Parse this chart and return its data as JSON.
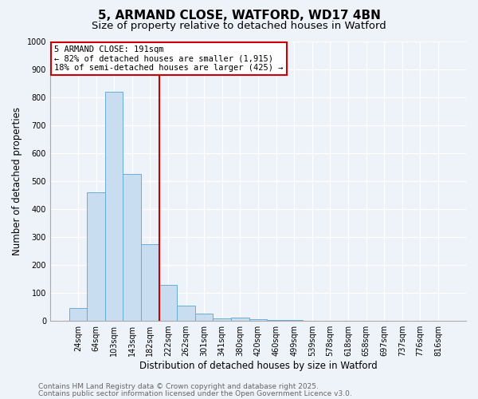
{
  "title1": "5, ARMAND CLOSE, WATFORD, WD17 4BN",
  "title2": "Size of property relative to detached houses in Watford",
  "xlabel": "Distribution of detached houses by size in Watford",
  "ylabel": "Number of detached properties",
  "categories": [
    "24sqm",
    "64sqm",
    "103sqm",
    "143sqm",
    "182sqm",
    "222sqm",
    "262sqm",
    "301sqm",
    "341sqm",
    "380sqm",
    "420sqm",
    "460sqm",
    "499sqm",
    "539sqm",
    "578sqm",
    "618sqm",
    "658sqm",
    "697sqm",
    "737sqm",
    "776sqm",
    "816sqm"
  ],
  "values": [
    45,
    460,
    820,
    525,
    275,
    130,
    55,
    25,
    10,
    12,
    5,
    2,
    3,
    1,
    0,
    0,
    0,
    0,
    0,
    0,
    0
  ],
  "bar_color": "#c9ddf0",
  "bar_edge_color": "#6aacd6",
  "red_line_index": 4,
  "annotation_text": "5 ARMAND CLOSE: 191sqm\n← 82% of detached houses are smaller (1,915)\n18% of semi-detached houses are larger (425) →",
  "annotation_box_color": "#ffffff",
  "annotation_border_color": "#cc0000",
  "ylim": [
    0,
    1000
  ],
  "yticks": [
    0,
    100,
    200,
    300,
    400,
    500,
    600,
    700,
    800,
    900,
    1000
  ],
  "footer1": "Contains HM Land Registry data © Crown copyright and database right 2025.",
  "footer2": "Contains public sector information licensed under the Open Government Licence v3.0.",
  "background_color": "#eef2f9",
  "grid_color": "#ffffff",
  "title_fontsize": 11,
  "subtitle_fontsize": 9.5,
  "axis_label_fontsize": 8.5,
  "tick_fontsize": 7,
  "annotation_fontsize": 7.5,
  "footer_fontsize": 6.5
}
